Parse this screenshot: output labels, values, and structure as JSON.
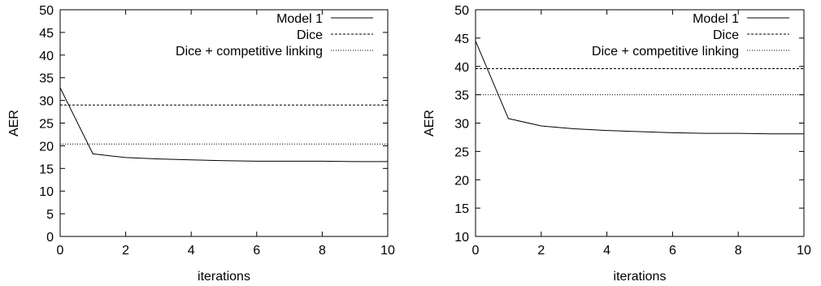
{
  "chart_data": [
    {
      "type": "line",
      "xlabel": "iterations",
      "ylabel": "AER",
      "xlim": [
        0,
        10
      ],
      "ylim": [
        0,
        50
      ],
      "xticks": [
        "0",
        "2",
        "4",
        "6",
        "8",
        "10"
      ],
      "yticks": [
        "0",
        "5",
        "10",
        "15",
        "20",
        "25",
        "30",
        "35",
        "40",
        "45",
        "50"
      ],
      "grid": false,
      "legend_position": "top-right",
      "series": [
        {
          "name": "Model 1",
          "style": "solid",
          "x": [
            0,
            1,
            2,
            3,
            4,
            5,
            6,
            7,
            8,
            9,
            10
          ],
          "y": [
            32.8,
            18.2,
            17.4,
            17.1,
            16.9,
            16.7,
            16.6,
            16.6,
            16.6,
            16.5,
            16.5
          ]
        },
        {
          "name": "Dice",
          "style": "dashed",
          "x": [
            0,
            10
          ],
          "y": [
            29.0,
            29.0
          ]
        },
        {
          "name": "Dice + competitive linking",
          "style": "dotted",
          "x": [
            0,
            10
          ],
          "y": [
            20.4,
            20.4
          ]
        }
      ]
    },
    {
      "type": "line",
      "xlabel": "iterations",
      "ylabel": "AER",
      "xlim": [
        0,
        10
      ],
      "ylim": [
        10,
        50
      ],
      "xticks": [
        "0",
        "2",
        "4",
        "6",
        "8",
        "10"
      ],
      "yticks": [
        "10",
        "15",
        "20",
        "25",
        "30",
        "35",
        "40",
        "45",
        "50"
      ],
      "grid": false,
      "legend_position": "top-right",
      "series": [
        {
          "name": "Model 1",
          "style": "solid",
          "x": [
            0,
            1,
            2,
            3,
            4,
            5,
            6,
            7,
            8,
            9,
            10
          ],
          "y": [
            44.5,
            30.8,
            29.5,
            29.0,
            28.7,
            28.5,
            28.3,
            28.2,
            28.2,
            28.1,
            28.1
          ]
        },
        {
          "name": "Dice",
          "style": "dashed",
          "x": [
            0,
            10
          ],
          "y": [
            39.6,
            39.6
          ]
        },
        {
          "name": "Dice + competitive linking",
          "style": "dotted",
          "x": [
            0,
            10
          ],
          "y": [
            35.0,
            35.0
          ]
        }
      ]
    }
  ]
}
